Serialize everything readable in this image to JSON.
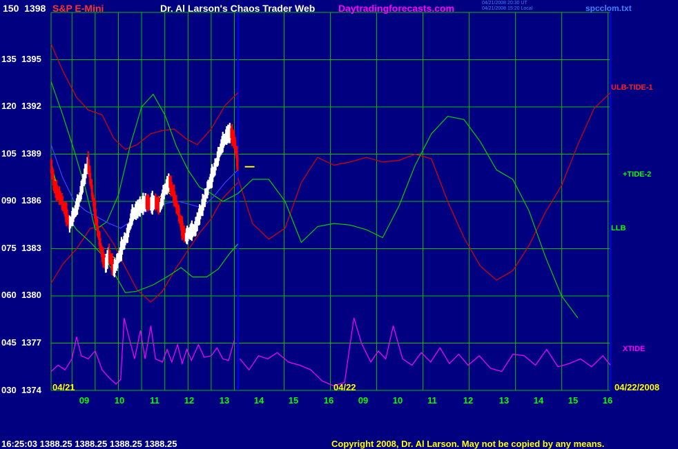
{
  "header": {
    "instrument": "S&P E-Mini",
    "site_title": "Dr. Al Larson's Chaos Trader Web",
    "site_url": "Daytradingforecasts.com",
    "timestamp_line_1": "04/21/2008 20:30 UT",
    "timestamp_line_2": "04/21/2008 15:20 Local",
    "data_file": "spcclom.txt"
  },
  "date_labels": {
    "day1": "04/21",
    "day2": "04/22",
    "right_date": "04/22/2008"
  },
  "footer": {
    "quote": "16:25:03  1388.25 1388.25 1388.25 1388.25",
    "copyright": "Copyright 2008, Dr. Al Larson. May not be copied by any means."
  },
  "colors": {
    "background": "#000080",
    "grid": "#00c000",
    "price_up": "#ffffff",
    "price_down": "#ff0000",
    "red_curve": "#e00000",
    "green_curve": "#00d000",
    "xtide": "#ff00ff",
    "blue_curve": "#4040ff",
    "yellow": "#ffff00",
    "time_marker": "#0000ff"
  },
  "chart_data": {
    "type": "line",
    "title": "S&P E-Mini",
    "y_left_labels": [
      "150",
      "135",
      "120",
      "105",
      "090",
      "075",
      "060",
      "045",
      "030"
    ],
    "y_right_labels": [
      "1398",
      "1395",
      "1392",
      "1389",
      "1386",
      "1383",
      "1380",
      "1377",
      "1374"
    ],
    "ylim_price": [
      1374,
      1398
    ],
    "ylim_index": [
      30,
      150
    ],
    "x_ticks": [
      "09",
      "10",
      "11",
      "12",
      "13",
      "14",
      "15",
      "16",
      "09",
      "10",
      "11",
      "12",
      "13",
      "14",
      "15",
      "16"
    ],
    "x_range_hours": [
      8.1,
      32.2
    ],
    "now_marker_hour": 16.15,
    "grid": true,
    "series_labels": {
      "ulb": "ULB",
      "tide1": "-TIDE-1",
      "tide2": "+TIDE-2",
      "llb": "LLB",
      "xtide": "XTIDE"
    },
    "price_path": [
      [
        8.1,
        1388.2
      ],
      [
        8.25,
        1386.8
      ],
      [
        8.5,
        1386.2
      ],
      [
        8.7,
        1385.4
      ],
      [
        8.9,
        1384.5
      ],
      [
        9.1,
        1385.2
      ],
      [
        9.3,
        1386.0
      ],
      [
        9.5,
        1387.3
      ],
      [
        9.7,
        1388.4
      ],
      [
        9.85,
        1386.8
      ],
      [
        10.0,
        1385.2
      ],
      [
        10.15,
        1383.8
      ],
      [
        10.3,
        1382.6
      ],
      [
        10.45,
        1381.9
      ],
      [
        10.6,
        1382.6
      ],
      [
        10.8,
        1381.6
      ],
      [
        11.0,
        1382.3
      ],
      [
        11.2,
        1383.2
      ],
      [
        11.4,
        1383.9
      ],
      [
        11.6,
        1385.1
      ],
      [
        11.8,
        1385.4
      ],
      [
        12.0,
        1385.7
      ],
      [
        12.2,
        1385.9
      ],
      [
        12.4,
        1385.8
      ],
      [
        12.6,
        1385.9
      ],
      [
        12.8,
        1385.6
      ],
      [
        13.0,
        1386.7
      ],
      [
        13.2,
        1387.2
      ],
      [
        13.4,
        1386.3
      ],
      [
        13.6,
        1385.2
      ],
      [
        13.75,
        1384.2
      ],
      [
        13.9,
        1383.7
      ],
      [
        14.1,
        1384.0
      ],
      [
        14.3,
        1384.2
      ],
      [
        14.5,
        1385.1
      ],
      [
        14.7,
        1386.0
      ],
      [
        14.9,
        1387.0
      ],
      [
        15.1,
        1387.8
      ],
      [
        15.3,
        1388.8
      ],
      [
        15.5,
        1389.7
      ],
      [
        15.7,
        1390.2
      ],
      [
        15.85,
        1390.3
      ],
      [
        16.0,
        1389.8
      ],
      [
        16.1,
        1388.9
      ],
      [
        16.15,
        1388.2
      ]
    ],
    "price_noise": [
      0.9,
      1.1,
      0.7,
      1.0,
      1.2,
      0.8,
      0.6,
      1.0,
      1.3,
      0.9,
      0.7,
      1.1,
      0.8,
      0.6,
      1.0,
      0.9,
      0.5,
      0.7,
      0.8,
      1.2,
      1.4,
      0.9,
      0.6,
      0.8,
      1.0,
      0.7,
      0.5,
      0.9,
      1.1,
      0.8,
      0.6,
      0.7,
      0.9,
      1.0,
      1.2,
      0.8,
      0.7,
      0.6,
      0.9,
      1.1
    ],
    "llb": [
      [
        8.1,
        1388.5
      ],
      [
        8.6,
        1385.5
      ],
      [
        9.2,
        1384.2
      ],
      [
        9.8,
        1383.4
      ],
      [
        10.3,
        1382.6
      ],
      [
        10.8,
        1381.5
      ],
      [
        11.3,
        1380.2
      ],
      [
        11.8,
        1380.3
      ],
      [
        12.5,
        1380.7
      ],
      [
        13.2,
        1381.3
      ],
      [
        13.7,
        1381.8
      ],
      [
        14.2,
        1381.2
      ],
      [
        14.8,
        1381.2
      ],
      [
        15.3,
        1381.7
      ],
      [
        15.8,
        1382.7
      ],
      [
        16.15,
        1383.3
      ]
    ],
    "ulb": [
      [
        8.1,
        1380.8
      ],
      [
        8.6,
        1382.0
      ],
      [
        9.2,
        1383.0
      ],
      [
        9.8,
        1384.3
      ],
      [
        10.3,
        1384.4
      ],
      [
        10.8,
        1383.3
      ],
      [
        11.3,
        1381.8
      ],
      [
        11.8,
        1380.4
      ],
      [
        12.4,
        1379.6
      ],
      [
        12.9,
        1380.3
      ],
      [
        13.5,
        1381.8
      ],
      [
        14.0,
        1382.9
      ],
      [
        14.5,
        1384.0
      ],
      [
        15.0,
        1384.9
      ],
      [
        15.5,
        1386.2
      ],
      [
        16.15,
        1387.2
      ]
    ],
    "red_upper": [
      [
        8.1,
        1396.0
      ],
      [
        8.6,
        1394.3
      ],
      [
        9.2,
        1392.6
      ],
      [
        9.7,
        1391.8
      ],
      [
        10.3,
        1391.5
      ],
      [
        10.8,
        1390.0
      ],
      [
        11.3,
        1389.3
      ],
      [
        11.8,
        1389.6
      ],
      [
        12.4,
        1390.3
      ],
      [
        12.9,
        1390.5
      ],
      [
        13.4,
        1390.6
      ],
      [
        13.9,
        1390.0
      ],
      [
        14.4,
        1389.6
      ],
      [
        15.0,
        1390.6
      ],
      [
        15.6,
        1392.1
      ],
      [
        16.15,
        1392.9
      ]
    ],
    "red_forecast": [
      [
        16.15,
        1387.5
      ],
      [
        16.6,
        1384.6
      ],
      [
        17.1,
        1383.6
      ],
      [
        17.6,
        1384.3
      ],
      [
        18.1,
        1387.2
      ],
      [
        18.6,
        1388.8
      ],
      [
        19.1,
        1388.3
      ],
      [
        19.6,
        1388.5
      ],
      [
        20.1,
        1388.8
      ],
      [
        20.6,
        1388.5
      ],
      [
        21.1,
        1388.6
      ],
      [
        21.6,
        1389.0
      ],
      [
        22.1,
        1388.7
      ],
      [
        22.6,
        1386.0
      ],
      [
        23.1,
        1383.7
      ],
      [
        23.6,
        1381.9
      ],
      [
        24.1,
        1381.0
      ],
      [
        24.6,
        1381.6
      ],
      [
        25.1,
        1383.2
      ],
      [
        25.6,
        1385.3
      ],
      [
        26.1,
        1387.0
      ],
      [
        26.6,
        1389.6
      ],
      [
        27.1,
        1391.9
      ],
      [
        27.6,
        1392.9
      ]
    ],
    "green_upper": [
      [
        8.1,
        1393.6
      ],
      [
        8.6,
        1391.5
      ],
      [
        9.1,
        1389.2
      ],
      [
        9.6,
        1386.7
      ],
      [
        10.0,
        1384.2
      ],
      [
        10.5,
        1384.7
      ],
      [
        11.0,
        1386.4
      ],
      [
        11.5,
        1389.5
      ],
      [
        12.0,
        1392.0
      ],
      [
        12.5,
        1392.8
      ],
      [
        13.0,
        1391.5
      ],
      [
        13.5,
        1389.5
      ],
      [
        14.0,
        1388.0
      ],
      [
        14.5,
        1386.9
      ],
      [
        15.0,
        1386.5
      ],
      [
        15.5,
        1386.0
      ],
      [
        16.15,
        1386.5
      ]
    ],
    "green_forecast": [
      [
        16.15,
        1386.5
      ],
      [
        16.6,
        1387.4
      ],
      [
        17.1,
        1387.4
      ],
      [
        17.6,
        1386.0
      ],
      [
        18.1,
        1383.4
      ],
      [
        18.6,
        1384.4
      ],
      [
        19.1,
        1384.6
      ],
      [
        19.6,
        1384.5
      ],
      [
        20.1,
        1384.2
      ],
      [
        20.6,
        1383.7
      ],
      [
        21.1,
        1385.7
      ],
      [
        21.6,
        1388.3
      ],
      [
        22.1,
        1390.3
      ],
      [
        22.6,
        1391.4
      ],
      [
        23.1,
        1391.2
      ],
      [
        23.6,
        1389.8
      ],
      [
        24.1,
        1388.0
      ],
      [
        24.6,
        1387.4
      ],
      [
        25.1,
        1385.4
      ],
      [
        25.6,
        1382.5
      ],
      [
        26.1,
        1380.0
      ],
      [
        26.6,
        1378.6
      ]
    ],
    "blue_curve": [
      [
        8.1,
        1389.6
      ],
      [
        8.6,
        1387.5
      ],
      [
        9.1,
        1386.0
      ],
      [
        9.6,
        1385.4
      ],
      [
        10.1,
        1385.0
      ],
      [
        10.6,
        1384.6
      ],
      [
        11.1,
        1384.3
      ],
      [
        11.6,
        1384.8
      ],
      [
        12.1,
        1385.3
      ],
      [
        12.6,
        1385.6
      ],
      [
        13.1,
        1385.9
      ],
      [
        13.6,
        1386.0
      ],
      [
        14.1,
        1385.8
      ],
      [
        14.6,
        1385.6
      ],
      [
        15.1,
        1386.3
      ],
      [
        15.6,
        1387.2
      ],
      [
        16.15,
        1388.0
      ]
    ],
    "xtide": [
      [
        8.1,
        1375.2
      ],
      [
        8.4,
        1375.6
      ],
      [
        8.7,
        1375.3
      ],
      [
        9.0,
        1376.0
      ],
      [
        9.2,
        1377.4
      ],
      [
        9.4,
        1376.2
      ],
      [
        9.7,
        1376.0
      ],
      [
        10.0,
        1376.5
      ],
      [
        10.3,
        1375.3
      ],
      [
        10.6,
        1374.8
      ],
      [
        10.9,
        1374.4
      ],
      [
        11.1,
        1374.7
      ],
      [
        11.25,
        1378.6
      ],
      [
        11.45,
        1377.4
      ],
      [
        11.7,
        1376.0
      ],
      [
        11.95,
        1377.8
      ],
      [
        12.15,
        1376.0
      ],
      [
        12.4,
        1378.1
      ],
      [
        12.6,
        1376.0
      ],
      [
        12.9,
        1375.8
      ],
      [
        13.1,
        1376.6
      ],
      [
        13.3,
        1375.8
      ],
      [
        13.55,
        1376.9
      ],
      [
        13.75,
        1375.7
      ],
      [
        13.95,
        1376.6
      ],
      [
        14.15,
        1375.9
      ],
      [
        14.45,
        1376.9
      ],
      [
        14.7,
        1376.1
      ],
      [
        15.0,
        1376.2
      ],
      [
        15.25,
        1376.7
      ],
      [
        15.5,
        1376.0
      ],
      [
        15.75,
        1375.9
      ],
      [
        16.0,
        1377.2
      ],
      [
        16.2,
        1376.0
      ],
      [
        16.45,
        1375.3
      ],
      [
        16.7,
        1376.2
      ],
      [
        16.95,
        1376.0
      ],
      [
        17.2,
        1376.4
      ],
      [
        17.5,
        1375.8
      ],
      [
        17.8,
        1375.6
      ],
      [
        18.1,
        1375.3
      ],
      [
        18.4,
        1374.6
      ],
      [
        18.7,
        1374.3
      ],
      [
        19.0,
        1374.5
      ],
      [
        19.25,
        1378.6
      ],
      [
        19.45,
        1377.0
      ],
      [
        19.7,
        1375.8
      ],
      [
        19.9,
        1376.5
      ],
      [
        20.1,
        1376.0
      ],
      [
        20.3,
        1378.1
      ],
      [
        20.55,
        1376.0
      ],
      [
        20.8,
        1375.6
      ],
      [
        21.05,
        1376.4
      ],
      [
        21.3,
        1375.8
      ],
      [
        21.55,
        1376.7
      ],
      [
        21.8,
        1375.7
      ],
      [
        22.05,
        1376.3
      ],
      [
        22.3,
        1375.6
      ],
      [
        22.6,
        1376.2
      ],
      [
        22.9,
        1375.4
      ],
      [
        23.2,
        1375.2
      ],
      [
        23.5,
        1376.3
      ],
      [
        23.8,
        1376.2
      ],
      [
        24.1,
        1375.6
      ],
      [
        24.4,
        1376.6
      ],
      [
        24.7,
        1375.5
      ],
      [
        25.0,
        1375.7
      ],
      [
        25.3,
        1376.0
      ],
      [
        25.6,
        1375.5
      ],
      [
        25.9,
        1376.2
      ],
      [
        26.1,
        1375.6
      ]
    ]
  }
}
